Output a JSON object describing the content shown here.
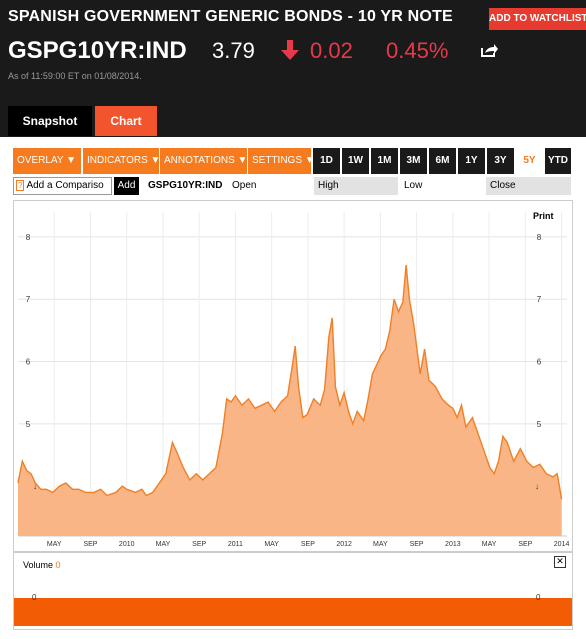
{
  "header": {
    "title": "SPANISH GOVERNMENT GENERIC BONDS - 10 YR NOTE",
    "watch_button": "ADD TO WATCHLIST",
    "ticker": "GSPG10YR:IND",
    "price": "3.79",
    "change": "0.02",
    "change_pct": "0.45%",
    "as_of": "As of 11:59:00 ET on 01/08/2014."
  },
  "tabs": {
    "snapshot": "Snapshot",
    "chart": "Chart"
  },
  "toolbar": {
    "overlay": "OVERLAY",
    "indicators": "INDICATORS",
    "annotations": "ANNOTATIONS",
    "settings": "SETTINGS",
    "ranges": [
      "1D",
      "1W",
      "1M",
      "3M",
      "6M",
      "1Y",
      "3Y",
      "5Y",
      "YTD"
    ],
    "active_range": "5Y"
  },
  "fields": {
    "compare_placeholder": "Add a Compariso",
    "help": "?",
    "add": "Add",
    "symbol": "GSPG10YR:IND",
    "open": "Open",
    "high": "High",
    "low": "Low",
    "close": "Close"
  },
  "print_label": "Print",
  "volume": {
    "label": "Volume",
    "value": "0",
    "axis_label": "0"
  },
  "colors": {
    "accent": "#f57b1e",
    "down": "#e6394a",
    "area_fill": "#f9b586",
    "line": "#f07f26"
  },
  "chart_data": {
    "type": "area",
    "title": "",
    "xlabel": "",
    "ylabel": "",
    "ylim": [
      3.2,
      8.4
    ],
    "yticks": [
      5,
      6,
      7,
      8
    ],
    "xticks": [
      "MAY",
      "SEP",
      "2010",
      "MAY",
      "SEP",
      "2011",
      "MAY",
      "SEP",
      "2012",
      "MAY",
      "SEP",
      "2013",
      "MAY",
      "SEP",
      "2014"
    ],
    "x_range": [
      "2009-01",
      "2014-01"
    ],
    "series": [
      {
        "values": [
          [
            2009.0,
            4.05
          ],
          [
            2009.04,
            4.4
          ],
          [
            2009.08,
            4.25
          ],
          [
            2009.12,
            4.2
          ],
          [
            2009.16,
            4.05
          ],
          [
            2009.21,
            3.95
          ],
          [
            2009.26,
            3.95
          ],
          [
            2009.32,
            3.9
          ],
          [
            2009.38,
            4.0
          ],
          [
            2009.44,
            4.05
          ],
          [
            2009.5,
            3.95
          ],
          [
            2009.56,
            3.95
          ],
          [
            2009.62,
            3.9
          ],
          [
            2009.7,
            3.9
          ],
          [
            2009.76,
            3.95
          ],
          [
            2009.82,
            3.85
          ],
          [
            2009.9,
            3.9
          ],
          [
            2009.96,
            4.0
          ],
          [
            2010.0,
            3.95
          ],
          [
            2010.08,
            3.9
          ],
          [
            2010.14,
            3.95
          ],
          [
            2010.18,
            3.85
          ],
          [
            2010.24,
            3.9
          ],
          [
            2010.3,
            4.05
          ],
          [
            2010.36,
            4.2
          ],
          [
            2010.42,
            4.7
          ],
          [
            2010.46,
            4.55
          ],
          [
            2010.52,
            4.3
          ],
          [
            2010.58,
            4.1
          ],
          [
            2010.64,
            4.2
          ],
          [
            2010.7,
            4.1
          ],
          [
            2010.76,
            4.2
          ],
          [
            2010.82,
            4.3
          ],
          [
            2010.88,
            4.85
          ],
          [
            2010.92,
            5.4
          ],
          [
            2010.96,
            5.35
          ],
          [
            2011.0,
            5.45
          ],
          [
            2011.06,
            5.3
          ],
          [
            2011.12,
            5.4
          ],
          [
            2011.18,
            5.25
          ],
          [
            2011.24,
            5.3
          ],
          [
            2011.3,
            5.35
          ],
          [
            2011.36,
            5.2
          ],
          [
            2011.42,
            5.35
          ],
          [
            2011.48,
            5.45
          ],
          [
            2011.52,
            5.9
          ],
          [
            2011.55,
            6.25
          ],
          [
            2011.58,
            5.6
          ],
          [
            2011.62,
            5.1
          ],
          [
            2011.66,
            5.15
          ],
          [
            2011.72,
            5.4
          ],
          [
            2011.78,
            5.3
          ],
          [
            2011.82,
            5.55
          ],
          [
            2011.86,
            6.4
          ],
          [
            2011.89,
            6.7
          ],
          [
            2011.92,
            5.6
          ],
          [
            2011.96,
            5.3
          ],
          [
            2012.0,
            5.5
          ],
          [
            2012.04,
            5.2
          ],
          [
            2012.08,
            5.0
          ],
          [
            2012.12,
            5.2
          ],
          [
            2012.18,
            5.05
          ],
          [
            2012.22,
            5.4
          ],
          [
            2012.26,
            5.8
          ],
          [
            2012.3,
            5.95
          ],
          [
            2012.34,
            6.1
          ],
          [
            2012.38,
            6.2
          ],
          [
            2012.42,
            6.5
          ],
          [
            2012.46,
            7.0
          ],
          [
            2012.5,
            6.8
          ],
          [
            2012.54,
            6.95
          ],
          [
            2012.57,
            7.55
          ],
          [
            2012.6,
            7.0
          ],
          [
            2012.64,
            6.6
          ],
          [
            2012.7,
            5.8
          ],
          [
            2012.74,
            6.2
          ],
          [
            2012.78,
            5.7
          ],
          [
            2012.84,
            5.6
          ],
          [
            2012.9,
            5.4
          ],
          [
            2012.96,
            5.3
          ],
          [
            2013.0,
            5.25
          ],
          [
            2013.04,
            5.1
          ],
          [
            2013.08,
            5.3
          ],
          [
            2013.12,
            4.95
          ],
          [
            2013.18,
            5.1
          ],
          [
            2013.22,
            4.9
          ],
          [
            2013.28,
            4.6
          ],
          [
            2013.34,
            4.3
          ],
          [
            2013.38,
            4.2
          ],
          [
            2013.42,
            4.4
          ],
          [
            2013.46,
            4.8
          ],
          [
            2013.5,
            4.7
          ],
          [
            2013.56,
            4.4
          ],
          [
            2013.62,
            4.6
          ],
          [
            2013.68,
            4.4
          ],
          [
            2013.74,
            4.3
          ],
          [
            2013.8,
            4.35
          ],
          [
            2013.86,
            4.2
          ],
          [
            2013.92,
            4.15
          ],
          [
            2013.96,
            4.2
          ],
          [
            2013.98,
            4.0
          ],
          [
            2014.0,
            3.79
          ]
        ]
      }
    ]
  }
}
